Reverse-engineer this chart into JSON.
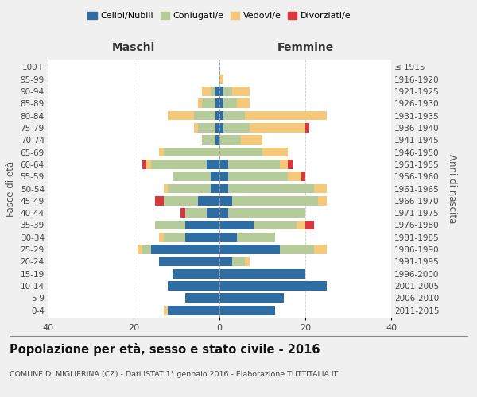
{
  "age_groups": [
    "0-4",
    "5-9",
    "10-14",
    "15-19",
    "20-24",
    "25-29",
    "30-34",
    "35-39",
    "40-44",
    "45-49",
    "50-54",
    "55-59",
    "60-64",
    "65-69",
    "70-74",
    "75-79",
    "80-84",
    "85-89",
    "90-94",
    "95-99",
    "100+"
  ],
  "birth_years": [
    "2011-2015",
    "2006-2010",
    "2001-2005",
    "1996-2000",
    "1991-1995",
    "1986-1990",
    "1981-1985",
    "1976-1980",
    "1971-1975",
    "1966-1970",
    "1961-1965",
    "1956-1960",
    "1951-1955",
    "1946-1950",
    "1941-1945",
    "1936-1940",
    "1931-1935",
    "1926-1930",
    "1921-1925",
    "1916-1920",
    "≤ 1915"
  ],
  "maschi": {
    "celibi": [
      12,
      8,
      12,
      11,
      14,
      16,
      8,
      8,
      3,
      5,
      2,
      2,
      3,
      0,
      1,
      1,
      1,
      1,
      1,
      0,
      0
    ],
    "coniugati": [
      0,
      0,
      0,
      0,
      0,
      2,
      5,
      7,
      5,
      8,
      10,
      9,
      13,
      13,
      3,
      4,
      5,
      3,
      1,
      0,
      0
    ],
    "vedovi": [
      1,
      0,
      0,
      0,
      0,
      1,
      1,
      0,
      0,
      0,
      1,
      0,
      1,
      1,
      0,
      1,
      6,
      1,
      2,
      0,
      0
    ],
    "divorziati": [
      0,
      0,
      0,
      0,
      0,
      0,
      0,
      0,
      1,
      2,
      0,
      0,
      1,
      0,
      0,
      0,
      0,
      0,
      0,
      0,
      0
    ]
  },
  "femmine": {
    "nubili": [
      13,
      15,
      25,
      20,
      3,
      14,
      4,
      8,
      2,
      3,
      2,
      2,
      2,
      0,
      0,
      1,
      1,
      1,
      1,
      0,
      0
    ],
    "coniugate": [
      0,
      0,
      0,
      0,
      3,
      8,
      9,
      10,
      18,
      20,
      20,
      14,
      12,
      10,
      5,
      6,
      5,
      3,
      2,
      0,
      0
    ],
    "vedove": [
      0,
      0,
      0,
      0,
      1,
      3,
      0,
      2,
      0,
      2,
      3,
      3,
      2,
      6,
      5,
      13,
      19,
      3,
      4,
      1,
      0
    ],
    "divorziate": [
      0,
      0,
      0,
      0,
      0,
      0,
      0,
      2,
      0,
      0,
      0,
      1,
      1,
      0,
      0,
      1,
      0,
      0,
      0,
      0,
      0
    ]
  },
  "colors": {
    "celibi": "#2e6da4",
    "coniugati": "#b5cb99",
    "vedovi": "#f5c87a",
    "divorziati": "#d9363e"
  },
  "title": "Popolazione per età, sesso e stato civile - 2016",
  "subtitle": "COMUNE DI MIGLIERINA (CZ) - Dati ISTAT 1° gennaio 2016 - Elaborazione TUTTITALIA.IT",
  "xlabel_left": "Maschi",
  "xlabel_right": "Femmine",
  "ylabel_left": "Fasce di età",
  "ylabel_right": "Anni di nascita",
  "xlim": 40,
  "legend_labels": [
    "Celibi/Nubili",
    "Coniugati/e",
    "Vedovi/e",
    "Divorziati/e"
  ],
  "bg_color": "#f0f0f0",
  "plot_bg": "#ffffff"
}
